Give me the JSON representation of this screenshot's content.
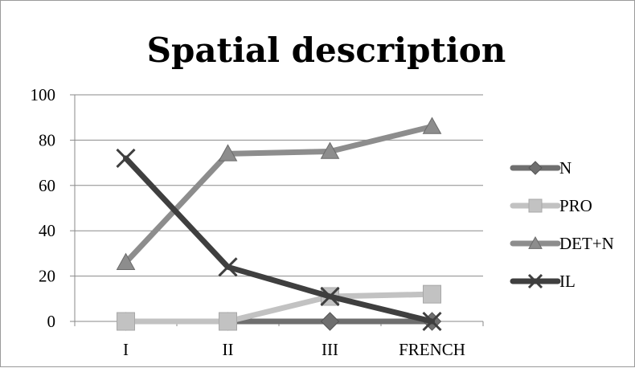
{
  "chart_data": {
    "type": "line",
    "title": "Spatial description",
    "xlabel": "",
    "ylabel": "",
    "categories": [
      "I",
      "II",
      "III",
      "FRENCH"
    ],
    "ylim": [
      0,
      100
    ],
    "yticks": [
      0,
      20,
      40,
      60,
      80,
      100
    ],
    "grid": true,
    "legend_position": "right",
    "series": [
      {
        "name": "N",
        "values": [
          0,
          0,
          0,
          0
        ],
        "color": "#6f6f6f",
        "marker": "diamond"
      },
      {
        "name": "PRO",
        "values": [
          0,
          0,
          11,
          12
        ],
        "color": "#c2c2c2",
        "marker": "square"
      },
      {
        "name": "DET+N",
        "values": [
          26,
          74,
          75,
          86
        ],
        "color": "#8d8d8d",
        "marker": "triangle"
      },
      {
        "name": "IL",
        "values": [
          72,
          24,
          11,
          0
        ],
        "color": "#3f3f3f",
        "marker": "x"
      }
    ]
  }
}
